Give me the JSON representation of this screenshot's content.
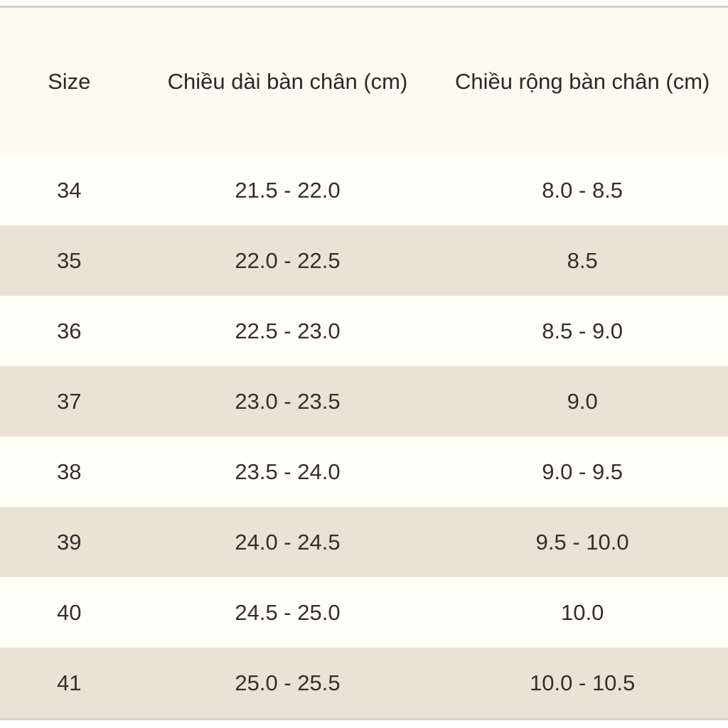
{
  "chart_data": {
    "type": "table",
    "title": "",
    "columns": {
      "size_label": "Size",
      "length_label": "Chiều dài bàn chân (cm)",
      "width_label": "Chiều rộng bàn chân (cm)"
    },
    "rows": [
      {
        "size": "34",
        "length": "21.5 - 22.0",
        "width": "8.0 - 8.5"
      },
      {
        "size": "35",
        "length": "22.0 - 22.5",
        "width": "8.5"
      },
      {
        "size": "36",
        "length": "22.5 - 23.0",
        "width": "8.5 - 9.0"
      },
      {
        "size": "37",
        "length": "23.0 - 23.5",
        "width": "9.0"
      },
      {
        "size": "38",
        "length": "23.5 - 24.0",
        "width": "9.0 - 9.5"
      },
      {
        "size": "39",
        "length": "24.0 - 24.5",
        "width": "9.5 - 10.0"
      },
      {
        "size": "40",
        "length": "24.5 - 25.0",
        "width": "10.0"
      },
      {
        "size": "41",
        "length": "25.0 - 25.5",
        "width": "10.0 - 10.5"
      }
    ],
    "colors": {
      "stripe_beige": "#ece1d5",
      "stripe_cream": "#fffef7",
      "header_background": "#fcfaf1",
      "hairline": "#d4d2cc",
      "text": "#33302b"
    }
  }
}
